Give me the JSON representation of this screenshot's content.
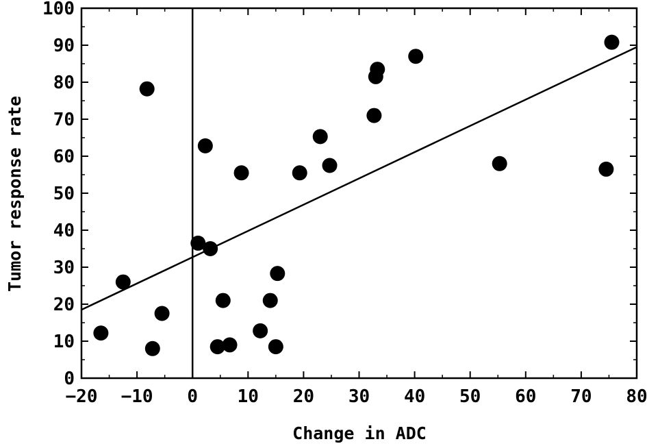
{
  "chart_data": {
    "type": "scatter",
    "title": "",
    "xlabel": "Change in ADC",
    "ylabel": "Tumor response rate",
    "xlim": [
      -20,
      80
    ],
    "ylim": [
      0,
      100
    ],
    "xticks": [
      -20,
      -10,
      0,
      10,
      20,
      30,
      40,
      50,
      60,
      70,
      80
    ],
    "yticks": [
      0,
      10,
      20,
      30,
      40,
      50,
      60,
      70,
      80,
      90,
      100
    ],
    "grid": false,
    "reference_line_x": 0,
    "trendline": {
      "x": [
        -20,
        80
      ],
      "y": [
        18.5,
        89.5
      ]
    },
    "series": [
      {
        "points": [
          {
            "x": -16.5,
            "y": 12.2
          },
          {
            "x": -12.5,
            "y": 26.0
          },
          {
            "x": -8.2,
            "y": 78.2
          },
          {
            "x": -7.2,
            "y": 8.0
          },
          {
            "x": -5.5,
            "y": 17.5
          },
          {
            "x": 1.0,
            "y": 36.5
          },
          {
            "x": 2.3,
            "y": 62.8
          },
          {
            "x": 3.2,
            "y": 35.0
          },
          {
            "x": 4.5,
            "y": 8.5
          },
          {
            "x": 5.5,
            "y": 21.0
          },
          {
            "x": 6.7,
            "y": 9.0
          },
          {
            "x": 8.8,
            "y": 55.5
          },
          {
            "x": 12.2,
            "y": 12.8
          },
          {
            "x": 14.0,
            "y": 21.0
          },
          {
            "x": 15.0,
            "y": 8.5
          },
          {
            "x": 15.3,
            "y": 28.3
          },
          {
            "x": 19.3,
            "y": 55.5
          },
          {
            "x": 23.0,
            "y": 65.3
          },
          {
            "x": 24.7,
            "y": 57.5
          },
          {
            "x": 32.7,
            "y": 71.0
          },
          {
            "x": 33.0,
            "y": 81.5
          },
          {
            "x": 33.3,
            "y": 83.5
          },
          {
            "x": 40.2,
            "y": 87.0
          },
          {
            "x": 55.3,
            "y": 58.0
          },
          {
            "x": 74.5,
            "y": 56.5
          },
          {
            "x": 75.5,
            "y": 90.8
          }
        ]
      }
    ]
  }
}
